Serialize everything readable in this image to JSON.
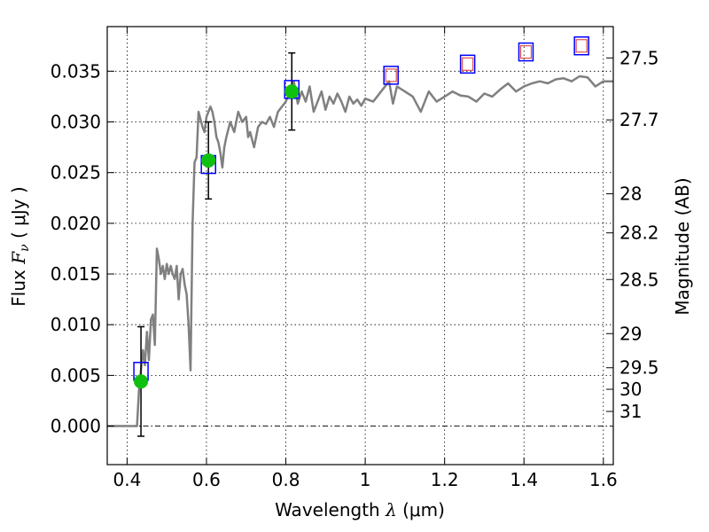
{
  "chart_data": {
    "type": "scatter",
    "xlabel": {
      "pre": "Wavelength  ",
      "sym": "λ",
      "post": " (μm)"
    },
    "ylabel": {
      "pre": "Flux  ",
      "sym": "F",
      "sub": "ν",
      "post": "  ( μJy )"
    },
    "y2label": "Magnitude (AB)",
    "xlim": [
      0.35,
      1.625
    ],
    "ylim": [
      -0.0038,
      0.0394
    ],
    "grid": true,
    "x_ticks": [
      0.4,
      0.6,
      0.8,
      1.0,
      1.2,
      1.4,
      1.6
    ],
    "x_tick_labels": [
      "0.4",
      "0.6",
      "0.8",
      "1",
      "1.2",
      "1.4",
      "1.6"
    ],
    "y_ticks": [
      0.0,
      0.005,
      0.01,
      0.015,
      0.02,
      0.025,
      0.03,
      0.035
    ],
    "y_tick_labels": [
      "0.000",
      "0.005",
      "0.010",
      "0.015",
      "0.020",
      "0.025",
      "0.030",
      "0.035"
    ],
    "y2_ticks": [
      {
        "label": "27.5",
        "mag": 27.5
      },
      {
        "label": "27.7",
        "mag": 27.7
      },
      {
        "label": "28",
        "mag": 28.0
      },
      {
        "label": "28.2",
        "mag": 28.2
      },
      {
        "label": "28.5",
        "mag": 28.5
      },
      {
        "label": "29",
        "mag": 29.0
      },
      {
        "label": "29.5",
        "mag": 29.5
      },
      {
        "label": "30",
        "mag": 30.0
      },
      {
        "label": "31",
        "mag": 31.0
      }
    ],
    "series": [
      {
        "role": "template-spectrum",
        "color": "#808080",
        "x": [
          0.35,
          0.425,
          0.43,
          0.44,
          0.445,
          0.45,
          0.455,
          0.46,
          0.465,
          0.47,
          0.475,
          0.48,
          0.485,
          0.49,
          0.495,
          0.5,
          0.505,
          0.51,
          0.515,
          0.52,
          0.525,
          0.53,
          0.535,
          0.54,
          0.545,
          0.55,
          0.555,
          0.56,
          0.565,
          0.57,
          0.575,
          0.58,
          0.59,
          0.595,
          0.6,
          0.605,
          0.61,
          0.615,
          0.62,
          0.625,
          0.63,
          0.635,
          0.64,
          0.645,
          0.65,
          0.66,
          0.67,
          0.68,
          0.69,
          0.7,
          0.705,
          0.71,
          0.72,
          0.73,
          0.74,
          0.75,
          0.76,
          0.77,
          0.78,
          0.79,
          0.8,
          0.81,
          0.82,
          0.83,
          0.84,
          0.85,
          0.86,
          0.87,
          0.88,
          0.89,
          0.9,
          0.91,
          0.92,
          0.93,
          0.94,
          0.95,
          0.96,
          0.97,
          0.98,
          0.99,
          1.0,
          1.02,
          1.04,
          1.06,
          1.07,
          1.08,
          1.1,
          1.12,
          1.14,
          1.16,
          1.18,
          1.2,
          1.22,
          1.24,
          1.26,
          1.28,
          1.3,
          1.32,
          1.34,
          1.36,
          1.38,
          1.4,
          1.42,
          1.44,
          1.46,
          1.48,
          1.5,
          1.52,
          1.54,
          1.56,
          1.58,
          1.6,
          1.625
        ],
        "y": [
          0.0,
          0.0,
          0.0035,
          0.0075,
          0.006,
          0.0093,
          0.0065,
          0.0105,
          0.011,
          0.008,
          0.0175,
          0.0165,
          0.015,
          0.0158,
          0.0145,
          0.016,
          0.015,
          0.0158,
          0.015,
          0.0145,
          0.0158,
          0.0125,
          0.015,
          0.0155,
          0.014,
          0.013,
          0.01,
          0.0055,
          0.02,
          0.026,
          0.0265,
          0.031,
          0.0295,
          0.029,
          0.0305,
          0.031,
          0.0315,
          0.031,
          0.03,
          0.0285,
          0.028,
          0.027,
          0.0255,
          0.0275,
          0.0285,
          0.03,
          0.029,
          0.031,
          0.03,
          0.0305,
          0.0285,
          0.029,
          0.0275,
          0.0295,
          0.03,
          0.0298,
          0.0305,
          0.0295,
          0.031,
          0.0315,
          0.032,
          0.033,
          0.034,
          0.0318,
          0.033,
          0.032,
          0.0335,
          0.031,
          0.032,
          0.033,
          0.0312,
          0.0325,
          0.0318,
          0.0328,
          0.032,
          0.031,
          0.0325,
          0.0318,
          0.0322,
          0.0316,
          0.0323,
          0.032,
          0.033,
          0.034,
          0.0318,
          0.0335,
          0.033,
          0.0325,
          0.031,
          0.033,
          0.032,
          0.0325,
          0.033,
          0.0326,
          0.0325,
          0.032,
          0.0328,
          0.0325,
          0.0332,
          0.0338,
          0.033,
          0.0335,
          0.0338,
          0.034,
          0.0338,
          0.0342,
          0.0343,
          0.034,
          0.0345,
          0.0344,
          0.0335,
          0.034,
          0.034
        ]
      },
      {
        "role": "model-points",
        "marker": "open-square",
        "color": "#0000ff",
        "x": [
          0.435,
          0.605,
          0.815,
          1.065,
          1.258,
          1.405,
          1.545
        ],
        "y": [
          0.0054,
          0.0258,
          0.0332,
          0.0346,
          0.0357,
          0.0369,
          0.0375
        ]
      },
      {
        "role": "inner-points",
        "marker": "open-square",
        "color": "#e05050",
        "x": [
          1.065,
          1.258,
          1.405,
          1.545
        ],
        "y": [
          0.0346,
          0.0357,
          0.0369,
          0.0375
        ]
      },
      {
        "role": "observed-points",
        "marker": "filled-circle",
        "color": "#10c010",
        "x": [
          0.435,
          0.605,
          0.815
        ],
        "y": [
          0.0044,
          0.0262,
          0.033
        ],
        "yerr": [
          0.0054,
          0.0038,
          0.0038
        ]
      }
    ]
  }
}
